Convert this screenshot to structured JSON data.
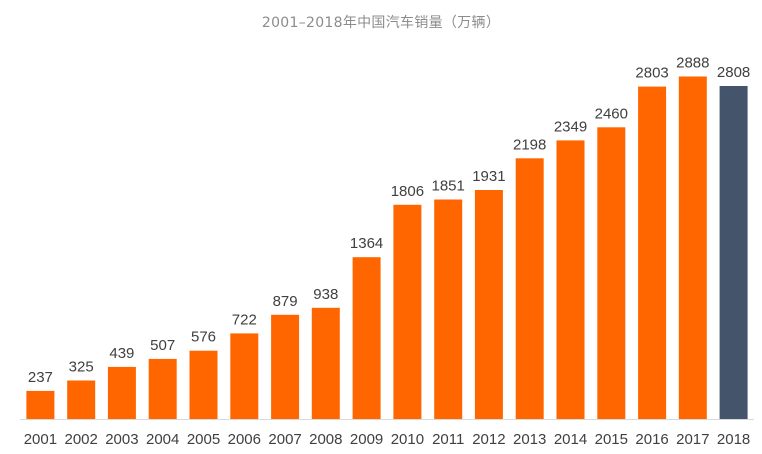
{
  "chart_data": {
    "type": "bar",
    "title": "2001–2018年中国汽车销量（万辆）",
    "xlabel": "",
    "ylabel": "",
    "categories": [
      "2001",
      "2002",
      "2003",
      "2004",
      "2005",
      "2006",
      "2007",
      "2008",
      "2009",
      "2010",
      "2011",
      "2012",
      "2013",
      "2014",
      "2015",
      "2016",
      "2017",
      "2018"
    ],
    "values": [
      237,
      325,
      439,
      507,
      576,
      722,
      879,
      938,
      1364,
      1806,
      1851,
      1931,
      2198,
      2349,
      2460,
      2803,
      2888,
      2808
    ],
    "ylim": [
      0,
      3000
    ],
    "grid": false,
    "legend": "none",
    "colors": {
      "bar": "#ff6600",
      "highlight": "#44546a",
      "baseline": "#d9d9d9",
      "text": "#404040"
    },
    "highlight_index": 17
  }
}
